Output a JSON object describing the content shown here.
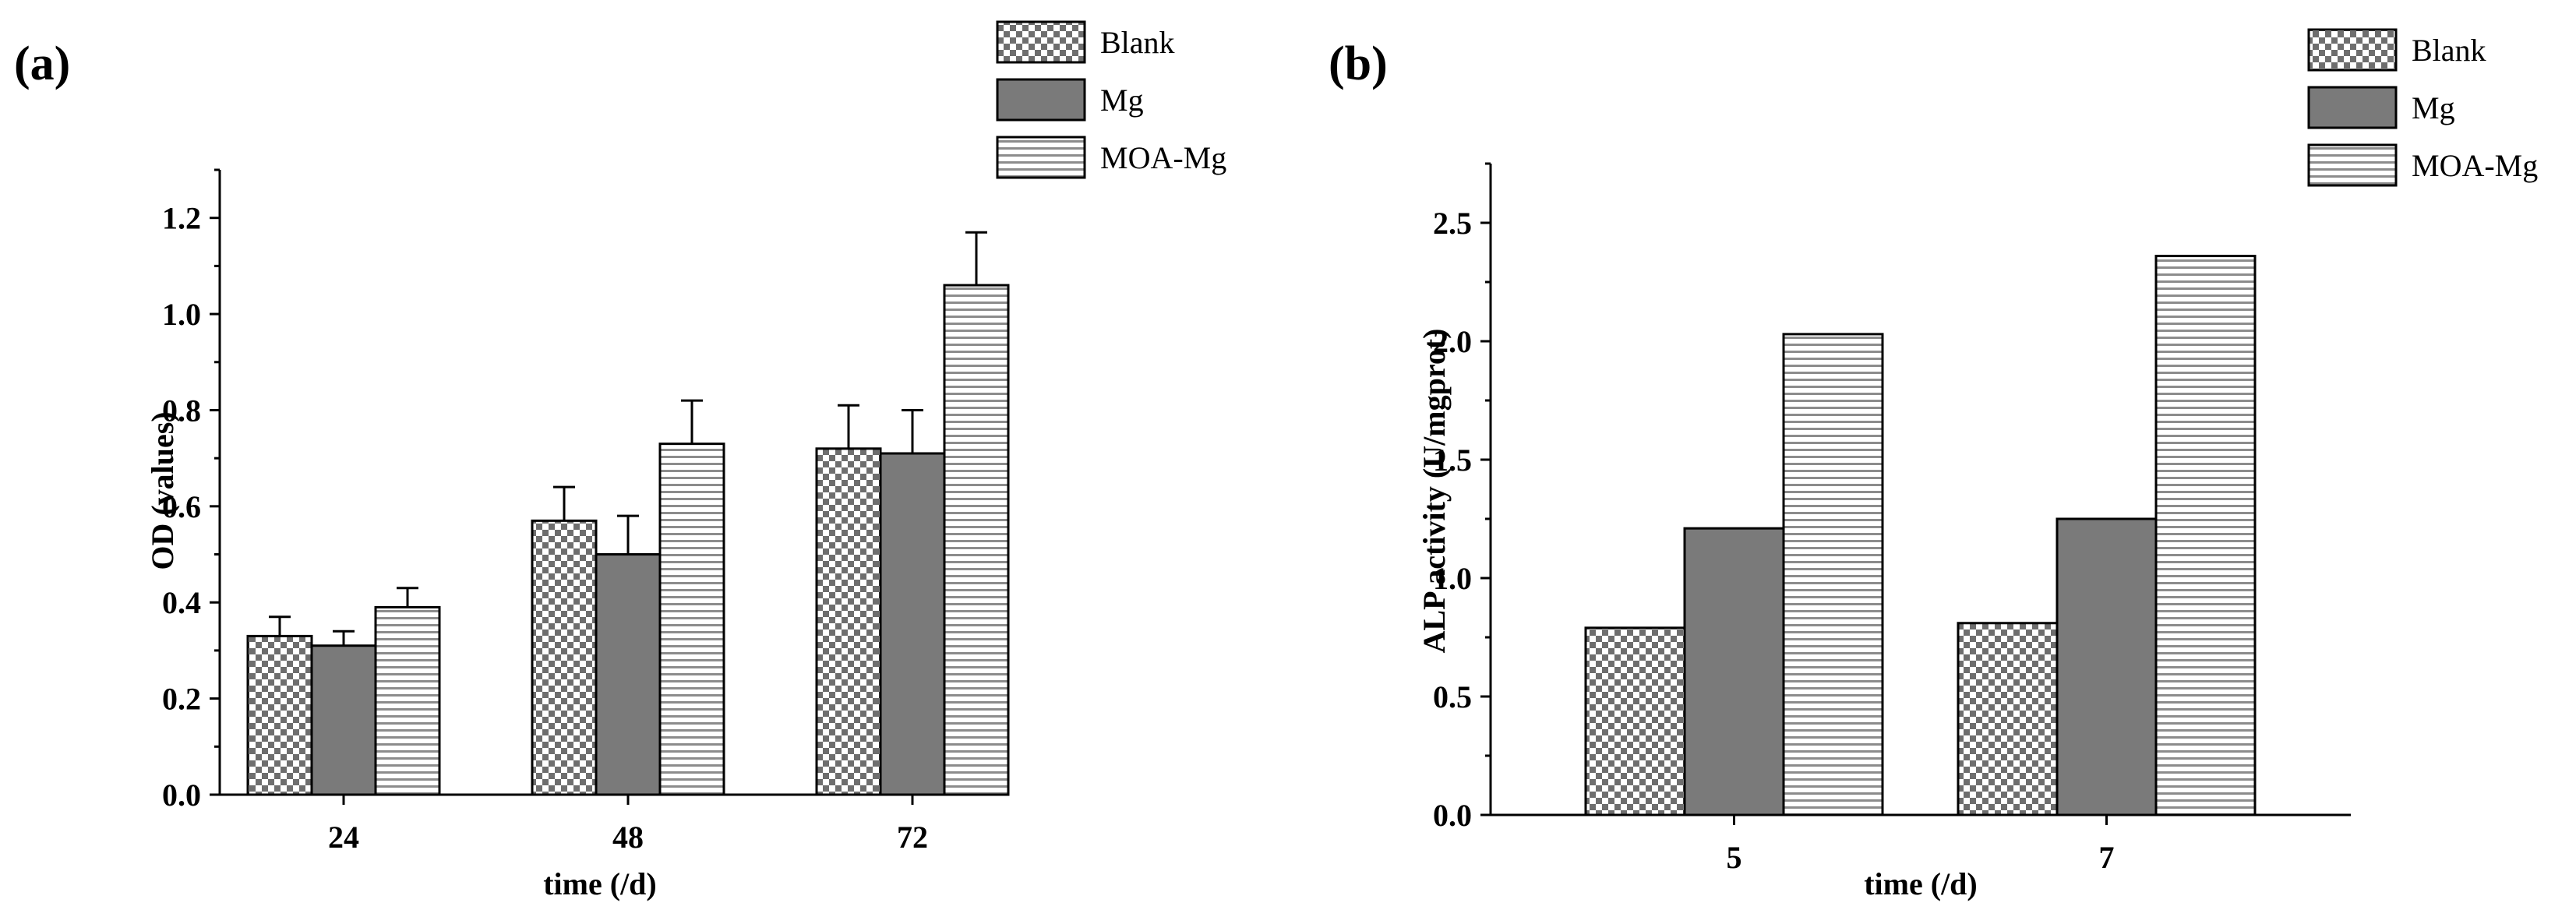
{
  "chart_data": [
    {
      "panel_label": "(a)",
      "type": "bar",
      "categories": [
        "24",
        "48",
        "72"
      ],
      "series": [
        {
          "name": "Blank",
          "values": [
            0.33,
            0.57,
            0.72
          ],
          "errors": [
            0.04,
            0.07,
            0.09
          ]
        },
        {
          "name": "Mg",
          "values": [
            0.31,
            0.5,
            0.71
          ],
          "errors": [
            0.03,
            0.08,
            0.09
          ]
        },
        {
          "name": "MOA-Mg",
          "values": [
            0.39,
            0.73,
            1.06
          ],
          "errors": [
            0.04,
            0.09,
            0.11
          ]
        }
      ],
      "xlabel": "time (/d)",
      "ylabel": "OD (values)",
      "ylim": [
        0,
        1.3
      ],
      "yticks": [
        "0.0",
        "0.2",
        "0.4",
        "0.6",
        "0.8",
        "1.0",
        "1.2"
      ],
      "legend_position": "top-right"
    },
    {
      "panel_label": "(b)",
      "type": "bar",
      "categories": [
        "5",
        "7"
      ],
      "series": [
        {
          "name": "Blank",
          "values": [
            0.79,
            0.81
          ]
        },
        {
          "name": "Mg",
          "values": [
            1.21,
            1.25
          ]
        },
        {
          "name": "MOA-Mg",
          "values": [
            2.03,
            2.36
          ]
        }
      ],
      "xlabel": "time (/d)",
      "ylabel": "ALP activity (U/mgprot)",
      "ylim": [
        0,
        2.75
      ],
      "yticks": [
        "0.0",
        "0.5",
        "1.0",
        "1.5",
        "2.0",
        "2.5"
      ],
      "legend_position": "top-right"
    }
  ],
  "series_patterns": {
    "Blank": "checker",
    "Mg": "solid-gray",
    "MOA-Mg": "hlines"
  },
  "colors": {
    "mg_fill": "#7a7a7a",
    "checker_dark": "#6e6e6e",
    "hline": "#8c8c8c",
    "background": "#ffffff"
  }
}
